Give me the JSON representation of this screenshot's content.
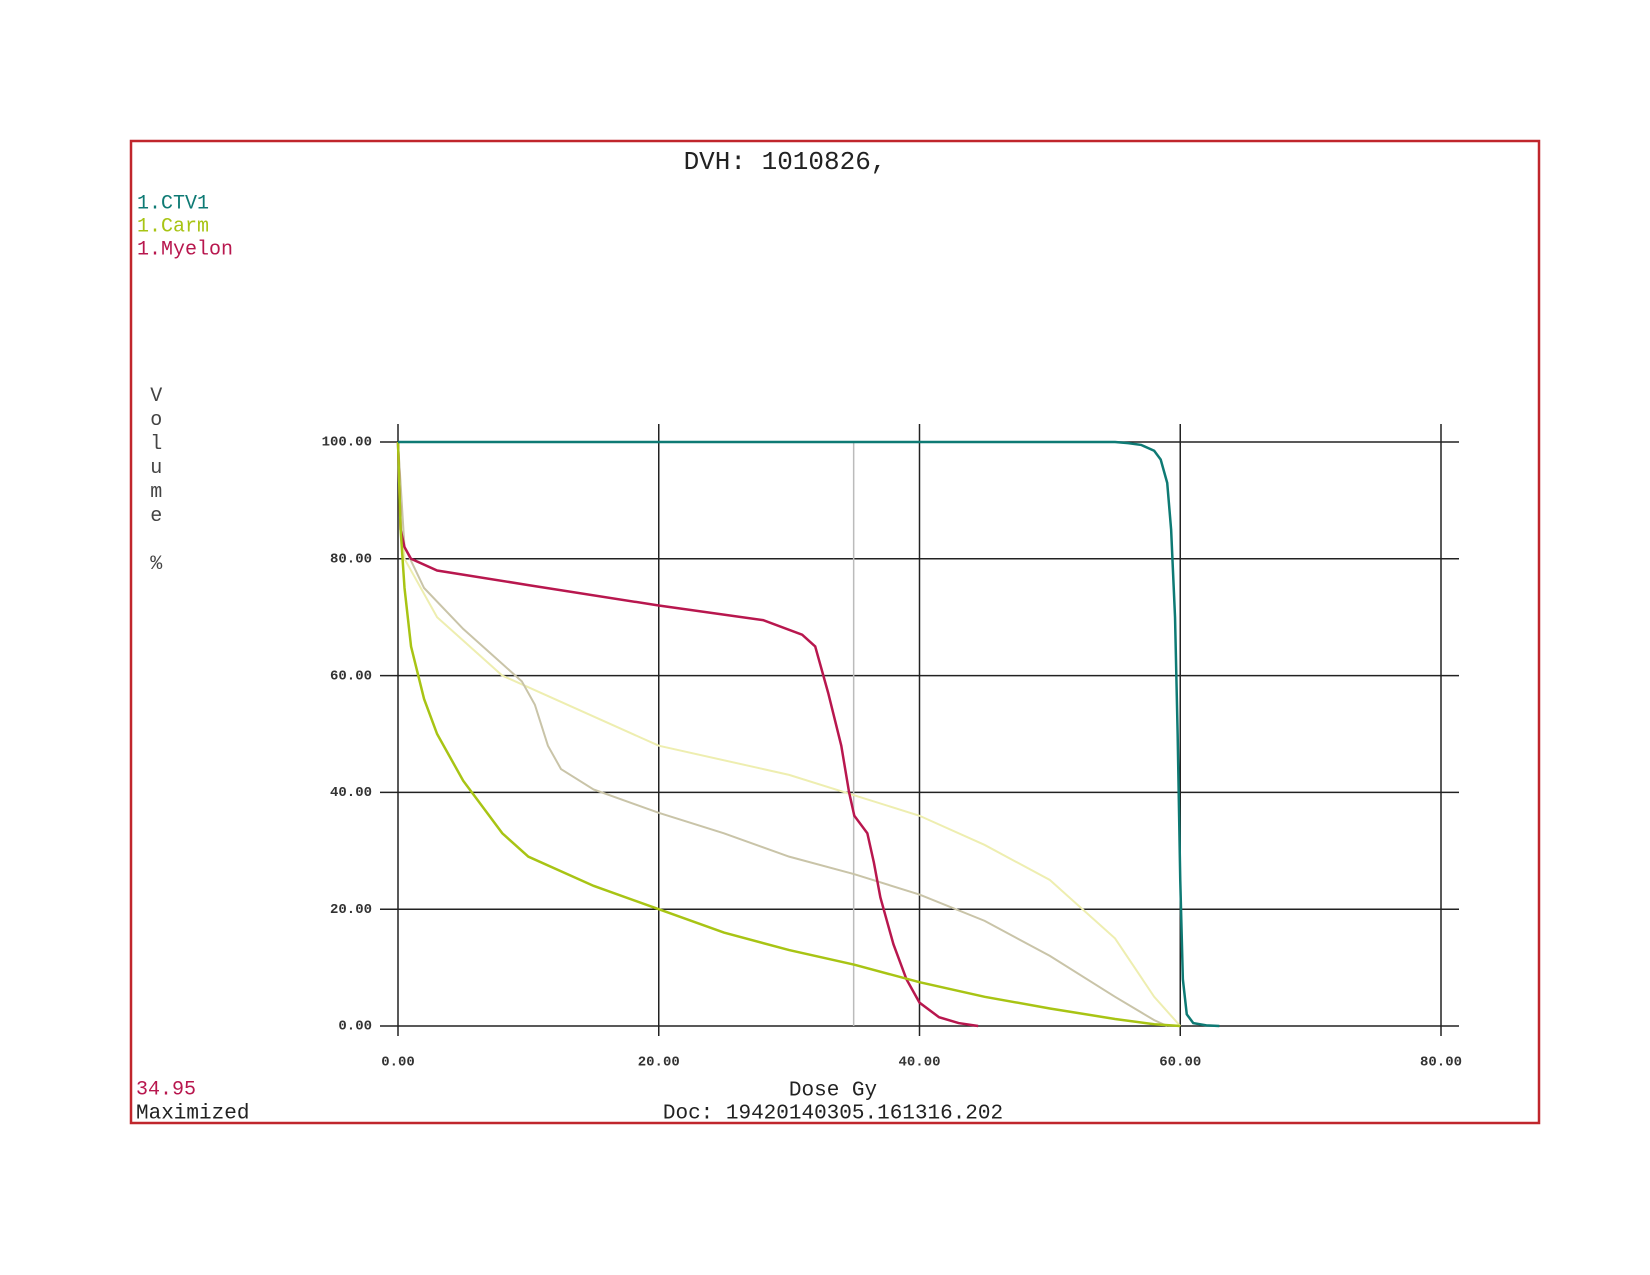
{
  "chart_data": {
    "type": "line",
    "title": "DVH: 1010826,",
    "x_label": "Dose Gy",
    "y_label": "Volume %",
    "footer": "Doc: 19420140305.161316.202",
    "cursor": 34.95,
    "status": "Maximized",
    "xlim": [
      0,
      80
    ],
    "ylim": [
      0,
      100
    ],
    "xticks": [
      {
        "value": 0,
        "label": "0.00"
      },
      {
        "value": 20,
        "label": "20.00"
      },
      {
        "value": 40,
        "label": "40.00"
      },
      {
        "value": 60,
        "label": "60.00"
      },
      {
        "value": 80,
        "label": "80.00"
      }
    ],
    "yticks": [
      {
        "value": 0,
        "label": "0.00"
      },
      {
        "value": 20,
        "label": "20.00"
      },
      {
        "value": 40,
        "label": "40.00"
      },
      {
        "value": 60,
        "label": "60.00"
      },
      {
        "value": 80,
        "label": "80.00"
      },
      {
        "value": 100,
        "label": "100.00"
      }
    ],
    "grid": true,
    "series": [
      {
        "name": "1.CTV1",
        "color": "#0e7a74",
        "x": [
          0,
          50,
          55,
          56,
          57,
          58,
          58.5,
          59,
          59.3,
          59.6,
          59.8,
          60,
          60.2,
          60.5,
          61,
          62,
          63
        ],
        "values": [
          100,
          100,
          100,
          99.8,
          99.5,
          98.5,
          97,
          93,
          85,
          70,
          50,
          25,
          8,
          2,
          0.5,
          0.1,
          0
        ]
      },
      {
        "name": "1.Carm",
        "color": "#a8c414",
        "x": [
          0,
          0.2,
          0.5,
          1,
          2,
          3,
          5,
          8,
          10,
          15,
          20,
          25,
          30,
          35,
          40,
          45,
          50,
          55,
          58,
          60
        ],
        "values": [
          100,
          85,
          75,
          65,
          56,
          50,
          42,
          33,
          29,
          24,
          20,
          16,
          13,
          10.5,
          7.5,
          5,
          3,
          1.2,
          0.3,
          0
        ]
      },
      {
        "name": "1.Myelon",
        "color": "#b8174e",
        "x": [
          0,
          0.2,
          0.5,
          1,
          3,
          10,
          20,
          28,
          31,
          32,
          33,
          34,
          34.6,
          35,
          36,
          36.5,
          37,
          38,
          39,
          40,
          41.5,
          43,
          44.5
        ],
        "values": [
          100,
          85,
          82,
          80,
          78,
          75.5,
          72,
          69.5,
          67,
          65,
          57,
          48,
          40,
          36,
          33,
          28,
          22,
          14,
          8,
          4,
          1.5,
          0.5,
          0
        ]
      },
      {
        "color": "#c9c4a8",
        "x": [
          0,
          0.5,
          2,
          5,
          8,
          9.5,
          10.5,
          11.5,
          12.5,
          15,
          20,
          25,
          30,
          35,
          40,
          45,
          50,
          55,
          58,
          59
        ],
        "values": [
          100,
          82,
          75,
          68,
          62,
          59,
          55,
          48,
          44,
          40.5,
          36.5,
          33,
          29,
          26,
          22.5,
          18,
          12,
          5,
          1,
          0
        ]
      },
      {
        "color": "#eeeeb0",
        "x": [
          0,
          0.5,
          3,
          8,
          12,
          20,
          30,
          40,
          45,
          50,
          55,
          58,
          60
        ],
        "values": [
          100,
          80,
          70,
          60,
          56,
          48,
          43,
          36,
          31,
          25,
          15,
          5,
          0
        ]
      }
    ]
  }
}
